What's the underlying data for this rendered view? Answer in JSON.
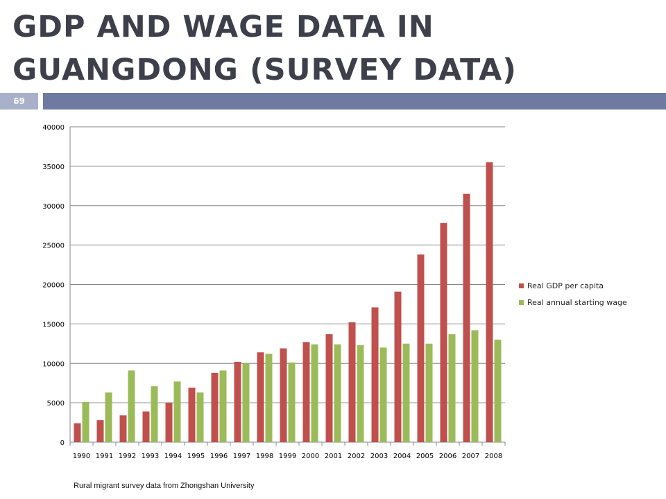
{
  "slide": {
    "title_line1": "GDP AND WAGE DATA IN",
    "title_line2": "GUANGDONG (SURVEY DATA)",
    "page_number": "69",
    "source_note": "Rural migrant survey data from Zhongshan University",
    "band_color": "#6e7aa1"
  },
  "chart_data": {
    "type": "bar",
    "title": "",
    "xlabel": "",
    "ylabel": "",
    "categories": [
      "1990",
      "1991",
      "1992",
      "1993",
      "1994",
      "1995",
      "1996",
      "1997",
      "1998",
      "1999",
      "2000",
      "2001",
      "2002",
      "2003",
      "2004",
      "2005",
      "2006",
      "2007",
      "2008"
    ],
    "series": [
      {
        "name": "Real GDP per capita",
        "color": "#c0504d",
        "values": [
          2400,
          2800,
          3400,
          3900,
          5000,
          6900,
          8800,
          10200,
          11400,
          11900,
          12700,
          13700,
          15200,
          17100,
          19100,
          23800,
          27800,
          31500,
          35500
        ]
      },
      {
        "name": "Real annual starting wage",
        "color": "#9bbb59",
        "values": [
          5100,
          6300,
          9100,
          7100,
          7700,
          6300,
          9100,
          10000,
          11200,
          10100,
          12400,
          12400,
          12300,
          12000,
          12500,
          12500,
          13700,
          14200,
          13000
        ]
      }
    ],
    "ylim": [
      0,
      40000
    ],
    "yticks": [
      0,
      5000,
      10000,
      15000,
      20000,
      25000,
      30000,
      35000,
      40000
    ],
    "grid": true,
    "legend_position": "right"
  }
}
